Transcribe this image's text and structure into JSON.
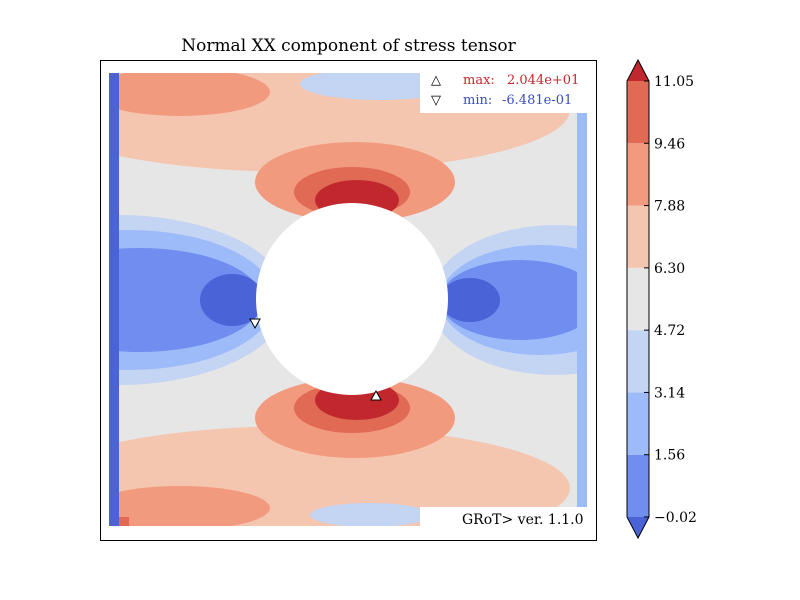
{
  "chart_data": {
    "type": "heatmap",
    "title": "Normal XX component of stress tensor",
    "colorbar": {
      "levels": [
        -0.02,
        1.56,
        3.14,
        4.72,
        6.3,
        7.88,
        9.46,
        11.05
      ],
      "tick_labels": [
        "−0.02",
        "1.56",
        "3.14",
        "4.72",
        "6.30",
        "7.88",
        "9.46",
        "11.05"
      ],
      "colors": [
        "#4a63d6",
        "#6f8ef0",
        "#9ebbf9",
        "#c4d4f3",
        "#e6e6e6",
        "#f4c6b0",
        "#f29a7e",
        "#e06a54",
        "#c0282e"
      ],
      "extend": "both"
    },
    "markers": {
      "max": {
        "symbol": "△",
        "label": "max:",
        "value": "2.044e+01",
        "color": "#c0282e"
      },
      "min": {
        "symbol": "▽",
        "label": "min:",
        "value": "-6.481e-01",
        "color": "#3b4cc0"
      }
    },
    "version": "GRoT> ver. 1.1.0",
    "grid": false,
    "features": [
      "circular hole at center of plate",
      "stress concentration above and below hole"
    ]
  }
}
